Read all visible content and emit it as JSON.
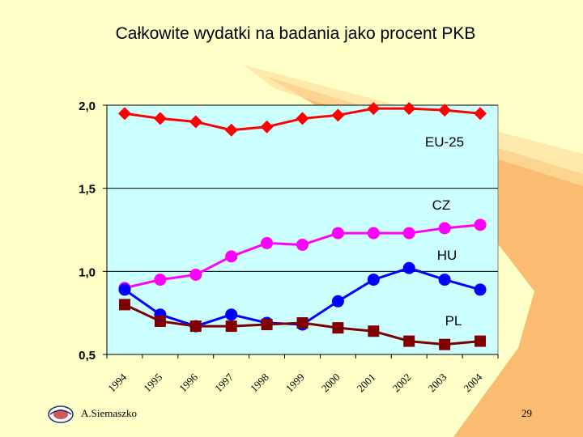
{
  "slide": {
    "title": "Całkowite wydatki na badania jako procent PKB",
    "author": "A.Siemaszko",
    "page_number": "29",
    "background_color": "#ffffc8",
    "accent_color": "#f8b060"
  },
  "chart_data": {
    "type": "line",
    "title": "",
    "xlabel": "",
    "ylabel": "",
    "categories": [
      "1994",
      "1995",
      "1996",
      "1997",
      "1998",
      "1999",
      "2000",
      "2001",
      "2002",
      "2003",
      "2004"
    ],
    "ylim": [
      0.5,
      2.0
    ],
    "yticks": [
      0.5,
      1.0,
      1.5,
      2.0
    ],
    "ytick_labels": [
      "0,5",
      "1,0",
      "1,5",
      "2,0"
    ],
    "grid": "horizontal",
    "plot_background": "#ccffff",
    "series": [
      {
        "name": "EU-25",
        "color": "#ff0000",
        "marker": "diamond",
        "values": [
          1.95,
          1.92,
          1.9,
          1.85,
          1.87,
          1.92,
          1.94,
          1.98,
          1.98,
          1.97,
          1.95
        ]
      },
      {
        "name": "CZ",
        "color": "#ff00ff",
        "marker": "circle",
        "values": [
          0.9,
          0.95,
          0.98,
          1.09,
          1.17,
          1.16,
          1.23,
          1.23,
          1.23,
          1.26,
          1.28
        ]
      },
      {
        "name": "HU",
        "color": "#0000ff",
        "marker": "circle",
        "values": [
          0.89,
          0.74,
          0.67,
          0.74,
          0.69,
          0.68,
          0.82,
          0.95,
          1.02,
          0.95,
          0.89
        ]
      },
      {
        "name": "PL",
        "color": "#800000",
        "marker": "square",
        "values": [
          0.8,
          0.7,
          0.67,
          0.67,
          0.68,
          0.69,
          0.66,
          0.64,
          0.58,
          0.56,
          0.58
        ]
      }
    ]
  }
}
